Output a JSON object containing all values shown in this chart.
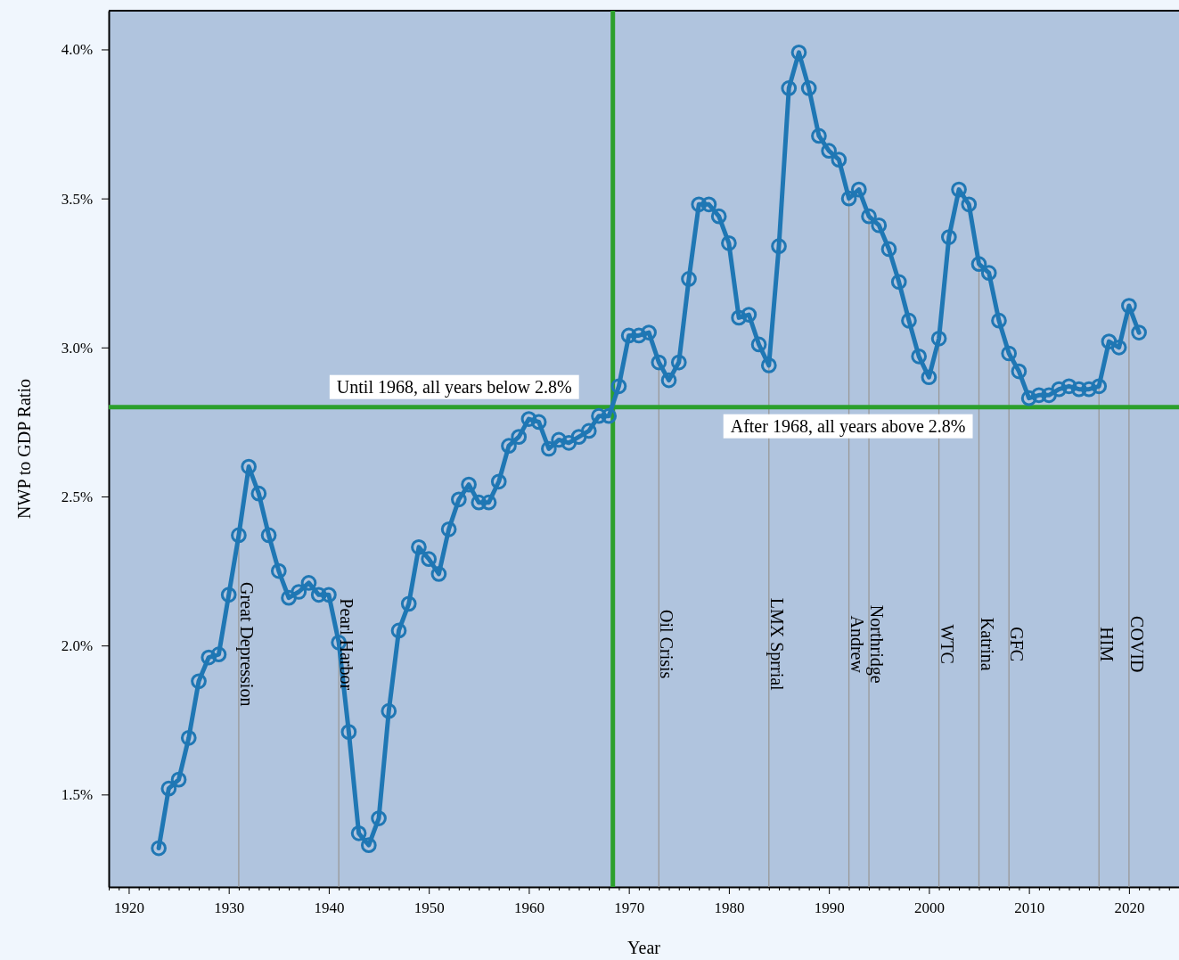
{
  "chart_data": {
    "type": "line",
    "xlabel": "Year",
    "ylabel": "NWP to GDP Ratio",
    "x": [
      1923,
      1924,
      1925,
      1926,
      1927,
      1928,
      1929,
      1930,
      1931,
      1932,
      1933,
      1934,
      1935,
      1936,
      1937,
      1938,
      1939,
      1940,
      1941,
      1942,
      1943,
      1944,
      1945,
      1946,
      1947,
      1948,
      1949,
      1950,
      1951,
      1952,
      1953,
      1954,
      1955,
      1956,
      1957,
      1958,
      1959,
      1960,
      1961,
      1962,
      1963,
      1964,
      1965,
      1966,
      1967,
      1968,
      1969,
      1970,
      1971,
      1972,
      1973,
      1974,
      1975,
      1976,
      1977,
      1978,
      1979,
      1980,
      1981,
      1982,
      1983,
      1984,
      1985,
      1986,
      1987,
      1988,
      1989,
      1990,
      1991,
      1992,
      1993,
      1994,
      1995,
      1996,
      1997,
      1998,
      1999,
      2000,
      2001,
      2002,
      2003,
      2004,
      2005,
      2006,
      2007,
      2008,
      2009,
      2010,
      2011,
      2012,
      2013,
      2014,
      2015,
      2016,
      2017,
      2018,
      2019,
      2020,
      2021
    ],
    "series": [
      {
        "color": "#1f77b4",
        "values": [
          1.32,
          1.52,
          1.55,
          1.69,
          1.88,
          1.96,
          1.97,
          2.17,
          2.37,
          2.6,
          2.51,
          2.37,
          2.25,
          2.16,
          2.18,
          2.21,
          2.17,
          2.17,
          2.01,
          1.71,
          1.37,
          1.33,
          1.42,
          1.78,
          2.05,
          2.14,
          2.33,
          2.29,
          2.24,
          2.39,
          2.49,
          2.54,
          2.48,
          2.48,
          2.55,
          2.67,
          2.7,
          2.76,
          2.75,
          2.66,
          2.69,
          2.68,
          2.7,
          2.72,
          2.77,
          2.77,
          2.87,
          3.04,
          3.04,
          3.05,
          2.95,
          2.89,
          2.95,
          3.23,
          3.48,
          3.48,
          3.44,
          3.35,
          3.1,
          3.11,
          3.01,
          2.94,
          3.34,
          3.87,
          3.99,
          3.87,
          3.71,
          3.66,
          3.63,
          3.5,
          3.53,
          3.44,
          3.41,
          3.33,
          3.22,
          3.09,
          2.97,
          2.9,
          3.03,
          3.37,
          3.53,
          3.48,
          3.28,
          3.25,
          3.09,
          2.98,
          2.92,
          2.83,
          2.84,
          2.84,
          2.86,
          2.87,
          2.86,
          2.86,
          2.87,
          3.02,
          3.0,
          3.14,
          3.05
        ]
      }
    ],
    "marker": "circle",
    "line_style": "solid",
    "xlim": [
      1918,
      2025
    ],
    "ylim": [
      1.19,
      4.13
    ],
    "xticks": [
      1920,
      1930,
      1940,
      1950,
      1960,
      1970,
      1980,
      1990,
      2000,
      2010,
      2020,
      {
        "value": 1918,
        "label": null
      },
      {
        "value": 1919,
        "label": null
      },
      {
        "value": 1921,
        "label": null
      },
      {
        "value": 1922,
        "label": null
      },
      {
        "value": 1923,
        "label": null
      },
      {
        "value": 1924,
        "label": null
      },
      {
        "value": 1925,
        "label": null
      },
      {
        "value": 1926,
        "label": null
      },
      {
        "value": 1927,
        "label": null
      },
      {
        "value": 1928,
        "label": null
      },
      {
        "value": 1929,
        "label": null
      },
      {
        "value": 1931,
        "label": null
      },
      {
        "value": 1932,
        "label": null
      },
      {
        "value": 1933,
        "label": null
      },
      {
        "value": 1934,
        "label": null
      },
      {
        "value": 1935,
        "label": null
      },
      {
        "value": 1936,
        "label": null
      },
      {
        "value": 1937,
        "label": null
      },
      {
        "value": 1938,
        "label": null
      },
      {
        "value": 1939,
        "label": null
      },
      {
        "value": 1941,
        "label": null
      },
      {
        "value": 1942,
        "label": null
      },
      {
        "value": 1943,
        "label": null
      },
      {
        "value": 1944,
        "label": null
      },
      {
        "value": 1945,
        "label": null
      },
      {
        "value": 1946,
        "label": null
      },
      {
        "value": 1947,
        "label": null
      },
      {
        "value": 1948,
        "label": null
      },
      {
        "value": 1949,
        "label": null
      },
      {
        "value": 1951,
        "label": null
      },
      {
        "value": 1952,
        "label": null
      },
      {
        "value": 1953,
        "label": null
      },
      {
        "value": 1954,
        "label": null
      },
      {
        "value": 1955,
        "label": null
      },
      {
        "value": 1956,
        "label": null
      },
      {
        "value": 1957,
        "label": null
      },
      {
        "value": 1958,
        "label": null
      },
      {
        "value": 1959,
        "label": null
      },
      {
        "value": 1961,
        "label": null
      },
      {
        "value": 1962,
        "label": null
      },
      {
        "value": 1963,
        "label": null
      },
      {
        "value": 1964,
        "label": null
      },
      {
        "value": 1965,
        "label": null
      },
      {
        "value": 1966,
        "label": null
      },
      {
        "value": 1967,
        "label": null
      },
      {
        "value": 1968,
        "label": null
      },
      {
        "value": 1969,
        "label": null
      },
      {
        "value": 1971,
        "label": null
      },
      {
        "value": 1972,
        "label": null
      },
      {
        "value": 1973,
        "label": null
      },
      {
        "value": 1974,
        "label": null
      },
      {
        "value": 1975,
        "label": null
      },
      {
        "value": 1976,
        "label": null
      },
      {
        "value": 1977,
        "label": null
      },
      {
        "value": 1978,
        "label": null
      },
      {
        "value": 1979,
        "label": null
      },
      {
        "value": 1981,
        "label": null
      },
      {
        "value": 1982,
        "label": null
      },
      {
        "value": 1983,
        "label": null
      },
      {
        "value": 1984,
        "label": null
      },
      {
        "value": 1985,
        "label": null
      },
      {
        "value": 1986,
        "label": null
      },
      {
        "value": 1987,
        "label": null
      },
      {
        "value": 1988,
        "label": null
      },
      {
        "value": 1989,
        "label": null
      },
      {
        "value": 1991,
        "label": null
      },
      {
        "value": 1992,
        "label": null
      },
      {
        "value": 1993,
        "label": null
      },
      {
        "value": 1994,
        "label": null
      },
      {
        "value": 1995,
        "label": null
      },
      {
        "value": 1996,
        "label": null
      },
      {
        "value": 1997,
        "label": null
      },
      {
        "value": 1998,
        "label": null
      },
      {
        "value": 1999,
        "label": null
      },
      {
        "value": 2001,
        "label": null
      },
      {
        "value": 2002,
        "label": null
      },
      {
        "value": 2003,
        "label": null
      },
      {
        "value": 2004,
        "label": null
      },
      {
        "value": 2005,
        "label": null
      },
      {
        "value": 2006,
        "label": null
      },
      {
        "value": 2007,
        "label": null
      },
      {
        "value": 2008,
        "label": null
      },
      {
        "value": 2009,
        "label": null
      },
      {
        "value": 2011,
        "label": null
      },
      {
        "value": 2012,
        "label": null
      },
      {
        "value": 2013,
        "label": null
      },
      {
        "value": 2014,
        "label": null
      },
      {
        "value": 2015,
        "label": null
      },
      {
        "value": 2016,
        "label": null
      },
      {
        "value": 2017,
        "label": null
      },
      {
        "value": 2018,
        "label": null
      },
      {
        "value": 2019,
        "label": null
      },
      {
        "value": 2021,
        "label": null
      },
      {
        "value": 2022,
        "label": null
      },
      {
        "value": 2023,
        "label": null
      },
      {
        "value": 2024,
        "label": null
      },
      {
        "value": 2025,
        "label": null
      }
    ],
    "yticks": [
      {
        "value": 1.5,
        "label": "1.5%"
      },
      {
        "value": 2.0,
        "label": "2.0%"
      },
      {
        "value": 2.5,
        "label": "2.5%"
      },
      {
        "value": 3.0,
        "label": "3.0%"
      },
      {
        "value": 3.5,
        "label": "3.5%"
      },
      {
        "value": 4.0,
        "label": "4.0%"
      }
    ],
    "ref_lines": [
      {
        "axis": "x",
        "value": 1968.4,
        "color": "#2ca02c"
      },
      {
        "axis": "y",
        "value": 2.8,
        "color": "#2ca02c"
      },
      {
        "axis": "x",
        "value": 1931,
        "label": "Great Depression",
        "color": "#999999"
      },
      {
        "axis": "x",
        "value": 1941,
        "label": "Pearl Harbor",
        "color": "#999999"
      },
      {
        "axis": "x",
        "value": 1973,
        "label": "Oil Crisis",
        "color": "#999999"
      },
      {
        "axis": "x",
        "value": 1984,
        "label": "LMX Sprrial",
        "color": "#999999"
      },
      {
        "axis": "x",
        "value": 1992,
        "label": "Andrew",
        "color": "#999999"
      },
      {
        "axis": "x",
        "value": 1994,
        "label": "Northridge",
        "color": "#999999"
      },
      {
        "axis": "x",
        "value": 2001,
        "label": "WTC",
        "color": "#999999"
      },
      {
        "axis": "x",
        "value": 2005,
        "label": "Katrina",
        "color": "#999999"
      },
      {
        "axis": "x",
        "value": 2008,
        "label": "GFC",
        "color": "#999999"
      },
      {
        "axis": "x",
        "value": 2017,
        "label": "HIM",
        "color": "#999999"
      },
      {
        "axis": "x",
        "value": 2020,
        "label": "COVID",
        "color": "#999999"
      }
    ],
    "annotations": [
      "Until 1968, all years below 2.8%",
      "After 1968, all years above 2.8%"
    ]
  }
}
